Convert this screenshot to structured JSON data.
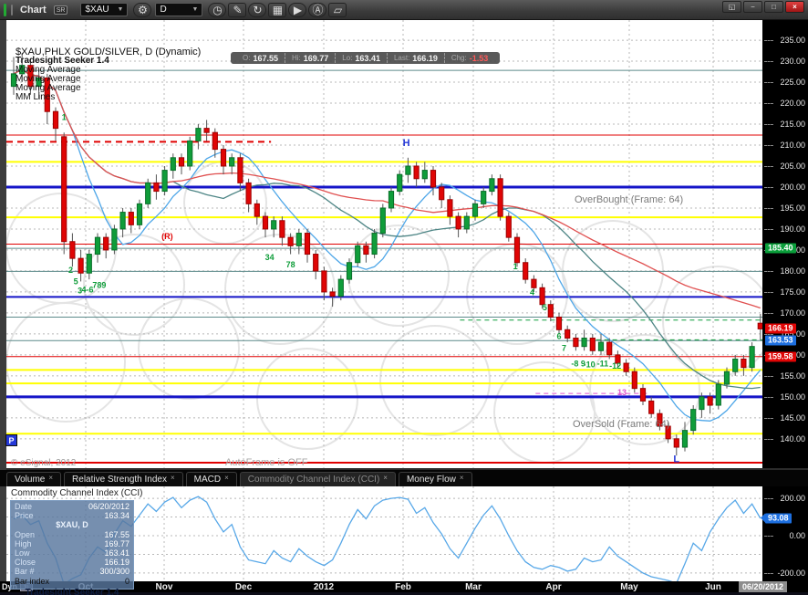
{
  "window": {
    "title": "Chart",
    "badge": "SR",
    "controls": [
      {
        "name": "popout-button",
        "glyph": "◱"
      },
      {
        "name": "minimize-button",
        "glyph": "−"
      },
      {
        "name": "maximize-button",
        "glyph": "□"
      },
      {
        "name": "close-button",
        "glyph": "×"
      }
    ]
  },
  "toolbar": {
    "symbol": "$XAU",
    "interval": "D",
    "icons": [
      {
        "name": "time-template-icon",
        "glyph": "◷",
        "round": true
      },
      {
        "name": "draw-icon",
        "glyph": "✎"
      },
      {
        "name": "reload-icon",
        "glyph": "↻",
        "round": true
      },
      {
        "name": "quote-board-icon",
        "glyph": "▦"
      },
      {
        "name": "play-icon",
        "glyph": "▶",
        "round": true
      },
      {
        "name": "auto-run-icon",
        "glyph": "Ⓐ",
        "round": true
      },
      {
        "name": "eraser-icon",
        "glyph": "▱"
      }
    ]
  },
  "legend": {
    "lines": [
      {
        "text": "$XAU,PHLX GOLD/SILVER, D (Dynamic)",
        "first": true
      },
      {
        "text": "Tradesight Seeker 1.4",
        "bold": true
      },
      {
        "text": "Moving Average"
      },
      {
        "text": "Moving Average"
      },
      {
        "text": "Moving Average"
      },
      {
        "text": "MM Lines"
      }
    ]
  },
  "quote_bar": {
    "items": [
      {
        "label": "O:",
        "value": "167.55"
      },
      {
        "label": "Hi:",
        "value": "169.77"
      },
      {
        "label": "Lo:",
        "value": "163.41"
      },
      {
        "label": "Last:",
        "value": "166.19"
      },
      {
        "label": "Chg:",
        "value": "-1.53",
        "color": "#ff5a5a"
      }
    ]
  },
  "overlays": {
    "overbought": "OverBought (Frame: 64)",
    "oversold": "OverSold (Frame: 64)",
    "copyright": "© eSignal, 2012",
    "autoframe": "AutoFrame is OFF",
    "p_marker": "P"
  },
  "tabs": [
    {
      "label": "Volume",
      "close": "×"
    },
    {
      "label": "Relative Strength Index",
      "close": "×"
    },
    {
      "label": "MACD",
      "close": "×"
    },
    {
      "label": "Commodity Channel Index (CCI)",
      "close": "×",
      "active": true
    },
    {
      "label": "Money Flow",
      "close": "×"
    }
  ],
  "cci_panel": {
    "title": "Commodity Channel Index (CCI)"
  },
  "data_window": {
    "rows": [
      {
        "label": "Date",
        "value": "06/20/2012"
      },
      {
        "label": "Price",
        "value": "163.34"
      },
      {
        "label": "",
        "value": "$XAU, D",
        "center": true
      },
      {
        "label": "Open",
        "value": "167.55"
      },
      {
        "label": "High",
        "value": "169.77"
      },
      {
        "label": "Low",
        "value": "163.41"
      },
      {
        "label": "Close",
        "value": "166.19"
      },
      {
        "label": "Bar #",
        "value": "300/300"
      },
      {
        "label": "Bar index",
        "value": "0",
        "dark": true
      }
    ],
    "brand": "Tradesight Seeker 1.4"
  },
  "status_bar": {
    "left": "Dyn",
    "link_badge": "fo"
  },
  "x_axis": {
    "date_badge": "06/20/2012",
    "months": [
      [
        "Oct",
        94
      ],
      [
        "Nov",
        180
      ],
      [
        "Dec",
        267
      ],
      [
        "2012",
        355
      ],
      [
        "Feb",
        442
      ],
      [
        "Mar",
        519
      ],
      [
        "Apr",
        607
      ],
      [
        "May",
        690
      ],
      [
        "Jun",
        782
      ]
    ]
  },
  "chart_data": {
    "type": "candlestick",
    "title": "$XAU,PHLX GOLD/SILVER, D (Dynamic)",
    "price_axis": {
      "top": 239.8,
      "bottom": 133.0,
      "tick_min": 140,
      "tick_max": 235,
      "tick_step": 5,
      "badges": [
        {
          "v": 185.4,
          "label": "185.40",
          "bg": "#0a9e3a"
        },
        {
          "v": 166.19,
          "label": "166.19",
          "bg": "#e00505"
        },
        {
          "v": 163.53,
          "label": "163.53",
          "bg": "#1d6fe0"
        },
        {
          "v": 159.58,
          "label": "159.58",
          "bg": "#e00505"
        }
      ]
    },
    "candles": [
      [
        224,
        231,
        222,
        227
      ],
      [
        227,
        232,
        225,
        229
      ],
      [
        229,
        230,
        222,
        224
      ],
      [
        224,
        228,
        221,
        226
      ],
      [
        226,
        227,
        215,
        218
      ],
      [
        218,
        219,
        211,
        214
      ],
      [
        212,
        213,
        184,
        187
      ],
      [
        187,
        189,
        181,
        183
      ],
      [
        183,
        185,
        177.5,
        179.5
      ],
      [
        179.5,
        185,
        178,
        184
      ],
      [
        184,
        189,
        182,
        188
      ],
      [
        188,
        189,
        183,
        185
      ],
      [
        185,
        191,
        184,
        190
      ],
      [
        190,
        195,
        188,
        194
      ],
      [
        194,
        195,
        189,
        191
      ],
      [
        191,
        197,
        190,
        196
      ],
      [
        196,
        202,
        195,
        201
      ],
      [
        201,
        203,
        197,
        199
      ],
      [
        199,
        205,
        198,
        204
      ],
      [
        204,
        208,
        202,
        207
      ],
      [
        207,
        208,
        203,
        205
      ],
      [
        205,
        212,
        204,
        211
      ],
      [
        211,
        215,
        209,
        214
      ],
      [
        214,
        216,
        211,
        213
      ],
      [
        213,
        214,
        207,
        209
      ],
      [
        209,
        210,
        203,
        205
      ],
      [
        205,
        208,
        203,
        207
      ],
      [
        207,
        208,
        199,
        201
      ],
      [
        201,
        202,
        194,
        196
      ],
      [
        196,
        197,
        191,
        193
      ],
      [
        193,
        194,
        188,
        190
      ],
      [
        190,
        193,
        188,
        192
      ],
      [
        192,
        193,
        186,
        188
      ],
      [
        188,
        189,
        184,
        186
      ],
      [
        186,
        190,
        184,
        189
      ],
      [
        189,
        190,
        182,
        184
      ],
      [
        184,
        185,
        178,
        180
      ],
      [
        180,
        181,
        173,
        175
      ],
      [
        175,
        176,
        171.5,
        174
      ],
      [
        174,
        179,
        173,
        178
      ],
      [
        178,
        183,
        177,
        182
      ],
      [
        182,
        187,
        181,
        186
      ],
      [
        186,
        187,
        182,
        184
      ],
      [
        184,
        190,
        183,
        189
      ],
      [
        189,
        196,
        188,
        195
      ],
      [
        195,
        200,
        194,
        199
      ],
      [
        199,
        204,
        198,
        203
      ],
      [
        203,
        207,
        201,
        205
      ],
      [
        205,
        206,
        200,
        202
      ],
      [
        202,
        206,
        201,
        204
      ],
      [
        204,
        205,
        198,
        200
      ],
      [
        200,
        201,
        195,
        197
      ],
      [
        197,
        198,
        191,
        193
      ],
      [
        193,
        194,
        188,
        190
      ],
      [
        190,
        194,
        189,
        193
      ],
      [
        193,
        197,
        192,
        196
      ],
      [
        196,
        200,
        195,
        199
      ],
      [
        199,
        203,
        198,
        202
      ],
      [
        202,
        203,
        192,
        193
      ],
      [
        193,
        194,
        187,
        188
      ],
      [
        188,
        189,
        181,
        182
      ],
      [
        182,
        183,
        177,
        178
      ],
      [
        178,
        179,
        175,
        176
      ],
      [
        176,
        177,
        171,
        172
      ],
      [
        172,
        173,
        168,
        169
      ],
      [
        169,
        170,
        165,
        166
      ],
      [
        166,
        167,
        163,
        164
      ],
      [
        164,
        165,
        161,
        162
      ],
      [
        162,
        166,
        161,
        164
      ],
      [
        164,
        165,
        160,
        161
      ],
      [
        161,
        165,
        160,
        163
      ],
      [
        163,
        164,
        159,
        160
      ],
      [
        160,
        161,
        157,
        158
      ],
      [
        158,
        159,
        155,
        156
      ],
      [
        156,
        157,
        151,
        152
      ],
      [
        152,
        153,
        148,
        149
      ],
      [
        149,
        150,
        145,
        146
      ],
      [
        146,
        147,
        142,
        143
      ],
      [
        143,
        144,
        139,
        140
      ],
      [
        140,
        141,
        136,
        138
      ],
      [
        138,
        144,
        137,
        142
      ],
      [
        142,
        148,
        141,
        147
      ],
      [
        147,
        151,
        145,
        150
      ],
      [
        150,
        151,
        146,
        148
      ],
      [
        148,
        154,
        147,
        153
      ],
      [
        153,
        157,
        152,
        156
      ],
      [
        156,
        160,
        155,
        159
      ],
      [
        159,
        160,
        155,
        157
      ],
      [
        157,
        163,
        156,
        162
      ],
      [
        167.55,
        169.77,
        163.41,
        166.19
      ]
    ],
    "moving_averages": [
      {
        "period": 8,
        "color": "#4da6e8"
      },
      {
        "period": 20,
        "color": "#4d8585"
      },
      {
        "period": 45,
        "color": "#e05050"
      }
    ],
    "mm_lines": [
      {
        "p": 227.8,
        "c": "#5c8a8a",
        "w": 1
      },
      {
        "p": 212.4,
        "c": "#e00000",
        "w": 1
      },
      {
        "p": 210.8,
        "c": "#e00000",
        "w": 2,
        "d": "7,5",
        "x2": 0.35
      },
      {
        "p": 206.0,
        "c": "#ffff00",
        "w": 2
      },
      {
        "p": 200.0,
        "c": "#1515c8",
        "w": 3
      },
      {
        "p": 192.8,
        "c": "#ffff00",
        "w": 2
      },
      {
        "p": 186.4,
        "c": "#e00000",
        "w": 1
      },
      {
        "p": 185.4,
        "c": "#5c8a8a",
        "w": 1
      },
      {
        "p": 179.9,
        "c": "#5c8a8a",
        "w": 1
      },
      {
        "p": 173.8,
        "c": "#1515c8",
        "w": 2
      },
      {
        "p": 169.0,
        "c": "#5c8a8a",
        "w": 1
      },
      {
        "p": 163.4,
        "c": "#5c8a8a",
        "w": 1
      },
      {
        "p": 159.58,
        "c": "#e00000",
        "w": 1
      },
      {
        "p": 156.4,
        "c": "#ffff00",
        "w": 2
      },
      {
        "p": 153.2,
        "c": "#ffff00",
        "w": 2
      },
      {
        "p": 150.0,
        "c": "#1515c8",
        "w": 3
      },
      {
        "p": 141.2,
        "c": "#ffff00",
        "w": 2
      },
      {
        "p": 134.3,
        "c": "#e00000",
        "w": 2
      },
      {
        "p": 168.3,
        "c": "#0f9d3a",
        "w": 1,
        "d": "5,4",
        "x1": 0.6
      },
      {
        "p": 163.6,
        "c": "#0f9d3a",
        "w": 1,
        "d": "5,4",
        "x1": 0.78
      },
      {
        "p": 150.8,
        "c": "#e055cc",
        "w": 1,
        "d": "5,4",
        "x1": 0.7,
        "x2": 0.85
      }
    ],
    "annotations": [
      {
        "t": "1",
        "i": 6,
        "p": 216,
        "c": "#0f9d3a"
      },
      {
        "t": "2",
        "i": 6.8,
        "p": 179.6,
        "c": "#0f9d3a"
      },
      {
        "t": "5",
        "i": 7.4,
        "p": 176.8,
        "c": "#0f9d3a"
      },
      {
        "t": "3",
        "i": 7.9,
        "p": 174.6,
        "c": "#0f9d3a"
      },
      {
        "t": "4-6",
        "i": 8.8,
        "p": 174.9,
        "c": "#0f9d3a"
      },
      {
        "t": "789",
        "i": 10.2,
        "p": 176.0,
        "c": "#0f9d3a"
      },
      {
        "t": "(R)",
        "i": 18.3,
        "p": 187.6,
        "c": "#e00000"
      },
      {
        "t": "34",
        "i": 30.5,
        "p": 182.6,
        "c": "#0f9d3a"
      },
      {
        "t": "78",
        "i": 33,
        "p": 180.9,
        "c": "#0f9d3a"
      },
      {
        "t": "H",
        "i": 46.8,
        "p": 209.8,
        "c": "#2438d8",
        "bold": true
      },
      {
        "t": "1",
        "i": 59.8,
        "p": 180.4,
        "c": "#0f9d3a"
      },
      {
        "t": "4",
        "i": 61.8,
        "p": 174.2,
        "c": "#0f9d3a"
      },
      {
        "t": "5",
        "i": 63.3,
        "p": 170.6,
        "c": "#0f9d3a"
      },
      {
        "t": "6",
        "i": 65,
        "p": 163.8,
        "c": "#0f9d3a"
      },
      {
        "t": "7",
        "i": 65.6,
        "p": 160.9,
        "c": "#0f9d3a"
      },
      {
        "t": "-8 9",
        "i": 67.3,
        "p": 157.3,
        "c": "#0f9d3a"
      },
      {
        "t": "-10",
        "i": 68.6,
        "p": 157.0,
        "c": "#0f9d3a"
      },
      {
        "t": "-11",
        "i": 70.2,
        "p": 157.3,
        "c": "#0f9d3a"
      },
      {
        "t": "-12",
        "i": 71.7,
        "p": 156.7,
        "c": "#0f9d3a"
      },
      {
        "t": "13",
        "i": 72.5,
        "p": 150.4,
        "c": "#e055cc"
      },
      {
        "t": "L",
        "i": 79,
        "p": 134.4,
        "c": "#2438d8",
        "bold": true
      }
    ],
    "decor_circles": [
      [
        60,
        250,
        60
      ],
      [
        140,
        290,
        55
      ],
      [
        65,
        375,
        65
      ],
      [
        200,
        360,
        55
      ],
      [
        300,
        295,
        60
      ],
      [
        330,
        415,
        55
      ],
      [
        430,
        280,
        55
      ],
      [
        470,
        395,
        60
      ],
      [
        560,
        300,
        55
      ],
      [
        590,
        430,
        55
      ],
      [
        665,
        275,
        55
      ],
      [
        700,
        405,
        60
      ],
      [
        780,
        330,
        60
      ],
      [
        240,
        200,
        45
      ]
    ],
    "indicator": {
      "type": "line",
      "name": "Commodity Channel Index (CCI)",
      "color": "#58a8e8",
      "values": [
        90,
        110,
        60,
        80,
        -40,
        -120,
        -260,
        -230,
        -210,
        -120,
        -60,
        -90,
        10,
        80,
        50,
        110,
        170,
        130,
        180,
        205,
        150,
        190,
        210,
        180,
        90,
        20,
        60,
        -60,
        -130,
        -140,
        -150,
        -80,
        -120,
        -140,
        -70,
        -110,
        -140,
        -160,
        -130,
        -40,
        60,
        140,
        90,
        160,
        190,
        200,
        205,
        195,
        120,
        150,
        70,
        10,
        -70,
        -120,
        -40,
        40,
        110,
        160,
        90,
        0,
        -80,
        -140,
        -170,
        -180,
        -160,
        -170,
        -190,
        -180,
        -120,
        -140,
        -130,
        -60,
        -110,
        -140,
        -170,
        -200,
        -220,
        -230,
        -240,
        -255,
        -150,
        -40,
        -80,
        20,
        90,
        150,
        190,
        120,
        170,
        93.08
      ],
      "axis_labels": [
        {
          "v": 200,
          "t": "200.00"
        },
        {
          "v": 0,
          "t": "0.00"
        },
        {
          "v": -200,
          "t": "-200.00"
        }
      ],
      "badge": {
        "v": 93.08,
        "label": "93.08",
        "bg": "#1d6fe0"
      },
      "grid_values": [
        200,
        100,
        0,
        -100,
        -200
      ]
    }
  }
}
